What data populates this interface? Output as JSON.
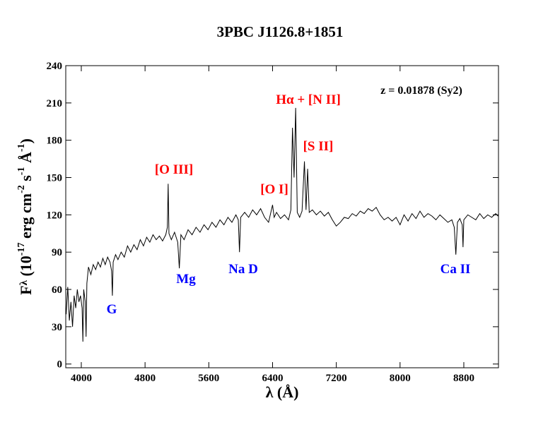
{
  "chart_data": {
    "type": "line",
    "title": "3PBC J1126.8+1851",
    "xlabel": "λ (Å)",
    "ylabel": [
      "F",
      "λ",
      " (10",
      "-17",
      " erg cm",
      "-2",
      " s",
      "-1",
      " Å",
      "-1",
      ")"
    ],
    "xlim": [
      3805,
      9235
    ],
    "ylim": [
      -3,
      240
    ],
    "xticks": [
      4000,
      4800,
      5600,
      6400,
      7200,
      8000,
      8800
    ],
    "yticks": [
      0,
      30,
      60,
      90,
      120,
      150,
      180,
      210,
      240
    ],
    "annotations": [
      {
        "text": "z = 0.01878 (Sy2)",
        "color": "#000000"
      },
      {
        "text": "Hα + [N II]",
        "color": "#ff0000"
      },
      {
        "text": "[S II]",
        "color": "#ff0000"
      },
      {
        "text": "[O III]",
        "color": "#ff0000"
      },
      {
        "text": "[O I]",
        "color": "#ff0000"
      },
      {
        "text": "G",
        "color": "#0000ff"
      },
      {
        "text": "Mg",
        "color": "#0000ff"
      },
      {
        "text": "Na D",
        "color": "#0000ff"
      },
      {
        "text": "Ca II",
        "color": "#0000ff"
      }
    ],
    "x": [
      3810,
      3830,
      3850,
      3870,
      3890,
      3910,
      3930,
      3950,
      3970,
      3990,
      4010,
      4020,
      4030,
      4050,
      4060,
      4070,
      4090,
      4120,
      4150,
      4180,
      4210,
      4240,
      4270,
      4300,
      4330,
      4360,
      4380,
      4390,
      4400,
      4430,
      4460,
      4500,
      4540,
      4580,
      4620,
      4660,
      4700,
      4740,
      4780,
      4820,
      4860,
      4900,
      4940,
      4980,
      5020,
      5060,
      5080,
      5090,
      5100,
      5130,
      5170,
      5210,
      5230,
      5250,
      5290,
      5340,
      5390,
      5440,
      5490,
      5540,
      5590,
      5640,
      5690,
      5740,
      5790,
      5840,
      5890,
      5940,
      5970,
      5985,
      6000,
      6050,
      6100,
      6150,
      6200,
      6250,
      6300,
      6350,
      6400,
      6420,
      6450,
      6500,
      6550,
      6600,
      6630,
      6650,
      6670,
      6690,
      6710,
      6740,
      6770,
      6800,
      6820,
      6840,
      6860,
      6900,
      6950,
      7000,
      7050,
      7100,
      7150,
      7200,
      7250,
      7300,
      7350,
      7400,
      7450,
      7500,
      7550,
      7600,
      7650,
      7700,
      7750,
      7800,
      7850,
      7900,
      7950,
      8000,
      8050,
      8100,
      8150,
      8200,
      8250,
      8300,
      8350,
      8400,
      8450,
      8500,
      8550,
      8600,
      8650,
      8680,
      8700,
      8720,
      8750,
      8780,
      8790,
      8800,
      8850,
      8900,
      8950,
      9000,
      9050,
      9100,
      9150,
      9200,
      9230
    ],
    "series": [
      {
        "color": "#000000",
        "values": [
          40,
          62,
          35,
          50,
          30,
          55,
          45,
          60,
          50,
          55,
          45,
          18,
          60,
          50,
          22,
          65,
          78,
          72,
          80,
          76,
          82,
          78,
          85,
          80,
          86,
          82,
          75,
          55,
          82,
          88,
          84,
          90,
          86,
          95,
          90,
          96,
          92,
          100,
          95,
          102,
          98,
          104,
          100,
          103,
          99,
          104,
          110,
          145,
          105,
          100,
          106,
          98,
          77,
          104,
          100,
          108,
          104,
          110,
          106,
          112,
          108,
          114,
          110,
          116,
          112,
          118,
          114,
          120,
          116,
          90,
          118,
          122,
          118,
          124,
          120,
          125,
          118,
          114,
          128,
          118,
          122,
          117,
          120,
          116,
          124,
          190,
          150,
          206,
          122,
          118,
          123,
          163,
          124,
          157,
          122,
          124,
          120,
          123,
          119,
          122,
          116,
          111,
          114,
          118,
          117,
          121,
          119,
          123,
          121,
          125,
          123,
          126,
          120,
          116,
          118,
          115,
          118,
          112,
          120,
          115,
          121,
          117,
          123,
          118,
          121,
          119,
          116,
          120,
          117,
          114,
          116,
          110,
          88,
          114,
          117,
          112,
          94,
          116,
          120,
          118,
          116,
          121,
          117,
          120,
          118,
          121,
          119
        ]
      }
    ]
  }
}
